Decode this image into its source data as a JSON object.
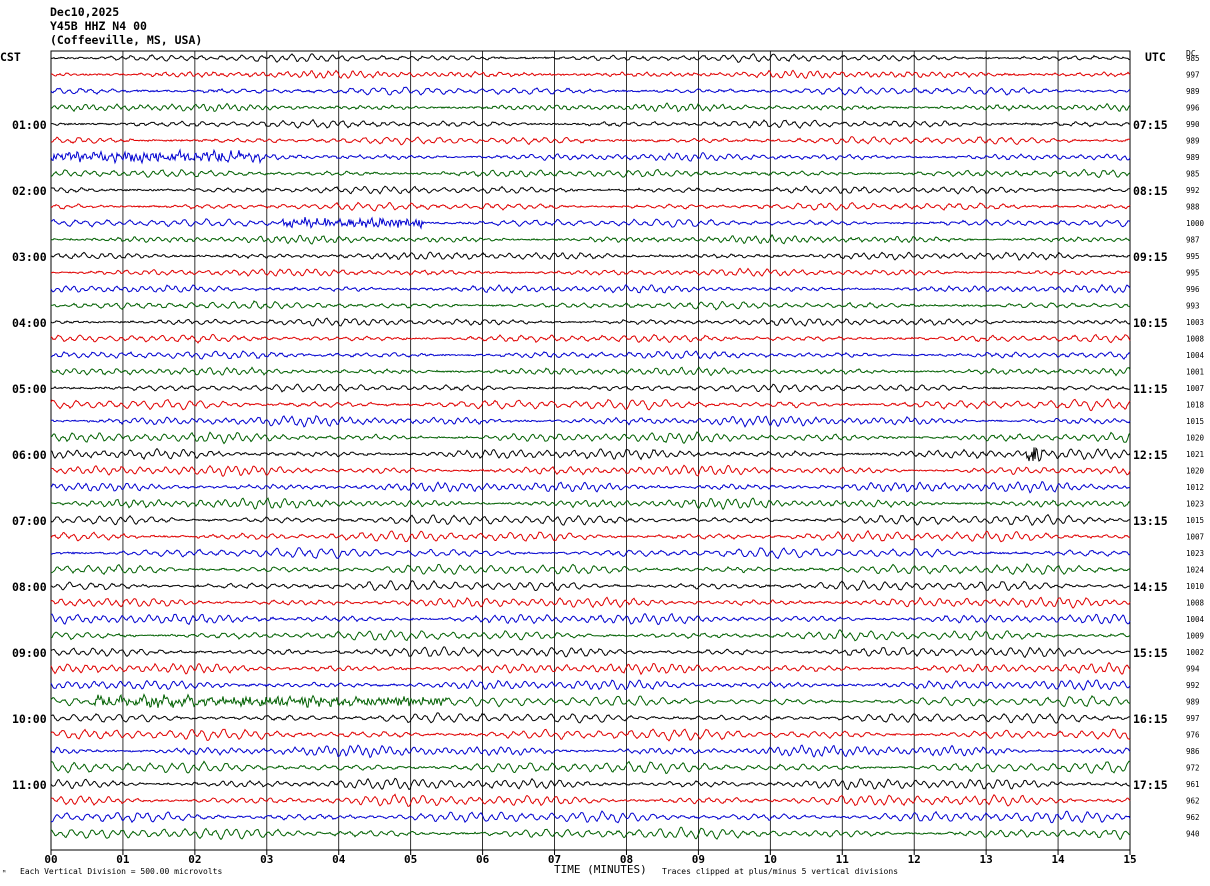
{
  "header": {
    "date": "Dec10,2025",
    "station": "Y45B HHZ N4 00",
    "location": "(Coffeeville, MS, USA)"
  },
  "left_axis_label": "CST",
  "right_axis_label": "UTC",
  "dc_label": "DC",
  "left_times": [
    "01:00",
    "02:00",
    "03:00",
    "04:00",
    "05:00",
    "06:00",
    "07:00",
    "08:00",
    "09:00",
    "10:00",
    "11:00"
  ],
  "right_times": [
    "07:15",
    "08:15",
    "09:15",
    "10:15",
    "11:15",
    "12:15",
    "13:15",
    "14:15",
    "15:15",
    "16:15",
    "17:15"
  ],
  "dc_offsets": [
    "985",
    "997",
    "989",
    "996",
    "990",
    "989",
    "989",
    "985",
    "992",
    "988",
    "1000",
    "987",
    "995",
    "995",
    "996",
    "993",
    "1003",
    "1008",
    "1004",
    "1001",
    "1007",
    "1018",
    "1015",
    "1020",
    "1021",
    "1020",
    "1012",
    "1023",
    "1015",
    "1007",
    "1023",
    "1024",
    "1010",
    "1008",
    "1004",
    "1009",
    "1002",
    "994",
    "992",
    "989",
    "997",
    "976",
    "986",
    "972",
    "961",
    "962",
    "962",
    "940"
  ],
  "footer": {
    "scale_note": "Each Vertical Division =  500.00 microvolts",
    "xaxis_title": "TIME (MINUTES)",
    "clip_note": "Traces clipped at plus/minus 5 vertical divisions",
    "logo_mark": "ᴹ"
  },
  "colors": {
    "trace_cycle": [
      "#000000",
      "#e00000",
      "#0000d0",
      "#006000"
    ],
    "grid": "#000000"
  },
  "chart_data": {
    "type": "line",
    "title": "Y45B HHZ N4 00",
    "xlabel": "TIME (MINUTES)",
    "ylabel": "",
    "x_ticks": [
      "00",
      "01",
      "02",
      "03",
      "04",
      "05",
      "06",
      "07",
      "08",
      "09",
      "10",
      "11",
      "12",
      "13",
      "14",
      "15"
    ],
    "xlim": [
      0,
      15
    ],
    "traces_per_hour": 4,
    "trace_count": 48,
    "trace_minutes": 15,
    "first_trace_start_cst": "00:00",
    "events": [
      {
        "trace": 6,
        "minute_start": 0.0,
        "minute_end": 3.0,
        "kind": "noise burst"
      },
      {
        "trace": 10,
        "minute_start": 3.2,
        "minute_end": 5.2,
        "kind": "noise burst"
      },
      {
        "trace": 24,
        "minute_start": 13.55,
        "minute_end": 13.8,
        "kind": "spike"
      },
      {
        "trace": 39,
        "minute_start": 0.6,
        "minute_end": 5.5,
        "kind": "noise burst"
      }
    ]
  }
}
